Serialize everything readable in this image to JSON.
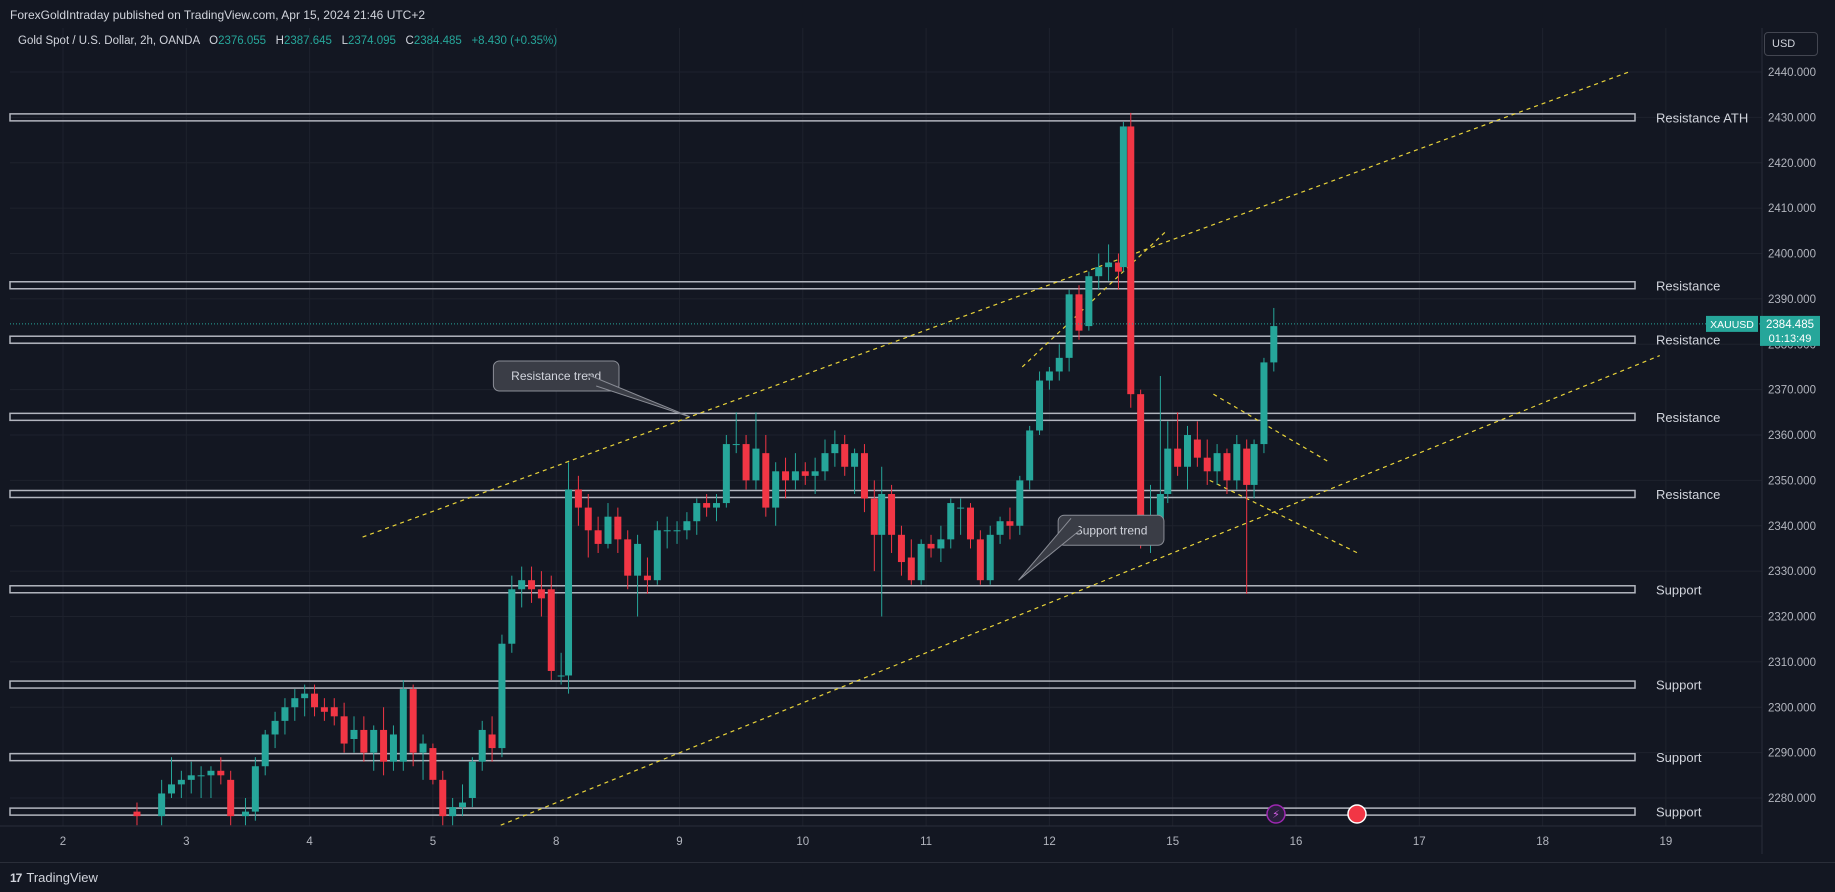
{
  "header": {
    "published_line": "ForexGoldIntraday published on TradingView.com, Apr 15, 2024 21:46 UTC+2"
  },
  "legend": {
    "symbol": "Gold Spot / U.S. Dollar, 2h, OANDA",
    "open_label": "O",
    "open": "2376.055",
    "high_label": "H",
    "high": "2387.645",
    "low_label": "L",
    "low": "2374.095",
    "close_label": "C",
    "close": "2384.485",
    "change": "+8.430 (+0.35%)"
  },
  "currency": "USD",
  "price_badge": {
    "symbol": "XAUUSD",
    "price": "2384.485",
    "countdown": "01:13:49"
  },
  "footer": {
    "brand": "TradingView"
  },
  "colors": {
    "background": "#131722",
    "up": "#26a69a",
    "down": "#f23645",
    "trend": "#e8d33a",
    "level": "#b2b5be"
  },
  "chart_data": {
    "type": "candlestick",
    "symbol": "XAUUSD",
    "timeframe": "2h",
    "y_range": [
      2275,
      2445
    ],
    "y_ticks": [
      "2280.000",
      "2290.000",
      "2300.000",
      "2310.000",
      "2320.000",
      "2330.000",
      "2340.000",
      "2350.000",
      "2360.000",
      "2370.000",
      "2380.000",
      "2390.000",
      "2400.000",
      "2410.000",
      "2420.000",
      "2430.000",
      "2440.000"
    ],
    "x_range": [
      1.5,
      19.5
    ],
    "x_ticks": [
      {
        "label": "2",
        "x": 2
      },
      {
        "label": "3",
        "x": 3
      },
      {
        "label": "4",
        "x": 4
      },
      {
        "label": "5",
        "x": 5
      },
      {
        "label": "8",
        "x": 6
      },
      {
        "label": "9",
        "x": 7
      },
      {
        "label": "10",
        "x": 8
      },
      {
        "label": "11",
        "x": 9
      },
      {
        "label": "12",
        "x": 10
      },
      {
        "label": "15",
        "x": 11
      },
      {
        "label": "16",
        "x": 12
      },
      {
        "label": "17",
        "x": 13
      },
      {
        "label": "18",
        "x": 14
      },
      {
        "label": "19",
        "x": 15
      }
    ],
    "levels": [
      {
        "label": "Resistance ATH",
        "price": 2430
      },
      {
        "label": "Resistance",
        "price": 2393
      },
      {
        "label": "Resistance",
        "price": 2381
      },
      {
        "label": "Resistance",
        "price": 2364
      },
      {
        "label": "Resistance",
        "price": 2347
      },
      {
        "label": "Support",
        "price": 2326
      },
      {
        "label": "Support",
        "price": 2305
      },
      {
        "label": "Support",
        "price": 2289
      },
      {
        "label": "Support",
        "price": 2277
      }
    ],
    "trend_lines": [
      {
        "from": [
          4.43,
          2337.5
        ],
        "to": [
          14.7,
          2440
        ]
      },
      {
        "from": [
          5.55,
          2274
        ],
        "to": [
          14.95,
          2377.5
        ]
      },
      {
        "from": [
          11.33,
          2369
        ],
        "to": [
          12.27,
          2354
        ]
      },
      {
        "from": [
          11.3,
          2350
        ],
        "to": [
          12.5,
          2334
        ]
      },
      {
        "from": [
          9.78,
          2375
        ],
        "to": [
          10.95,
          2405
        ]
      }
    ],
    "annotations": [
      {
        "text": "Resistance trend",
        "x": 6.0,
        "y": 2373
      },
      {
        "text": "Support trend",
        "x": 10.5,
        "y": 2339
      }
    ],
    "candles": [
      {
        "x": 2.6,
        "o": 2277,
        "h": 2279,
        "l": 2274,
        "c": 2276
      },
      {
        "x": 2.8,
        "o": 2276,
        "h": 2284,
        "l": 2274,
        "c": 2281
      },
      {
        "x": 2.88,
        "o": 2281,
        "h": 2289,
        "l": 2280,
        "c": 2283
      },
      {
        "x": 2.96,
        "o": 2283,
        "h": 2286,
        "l": 2280,
        "c": 2284
      },
      {
        "x": 3.04,
        "o": 2284,
        "h": 2288,
        "l": 2281,
        "c": 2285
      },
      {
        "x": 3.12,
        "o": 2285,
        "h": 2287,
        "l": 2280,
        "c": 2285
      },
      {
        "x": 3.2,
        "o": 2285,
        "h": 2287,
        "l": 2280,
        "c": 2286
      },
      {
        "x": 3.28,
        "o": 2286,
        "h": 2289,
        "l": 2283,
        "c": 2285
      },
      {
        "x": 3.36,
        "o": 2284,
        "h": 2286,
        "l": 2274,
        "c": 2276
      },
      {
        "x": 3.48,
        "o": 2276,
        "h": 2280,
        "l": 2274,
        "c": 2277
      },
      {
        "x": 3.56,
        "o": 2277,
        "h": 2289,
        "l": 2275,
        "c": 2287
      },
      {
        "x": 3.64,
        "o": 2287,
        "h": 2295,
        "l": 2285,
        "c": 2294
      },
      {
        "x": 3.72,
        "o": 2294,
        "h": 2299,
        "l": 2291,
        "c": 2297
      },
      {
        "x": 3.8,
        "o": 2297,
        "h": 2302,
        "l": 2294,
        "c": 2300
      },
      {
        "x": 3.88,
        "o": 2300,
        "h": 2304,
        "l": 2297,
        "c": 2302
      },
      {
        "x": 3.96,
        "o": 2302,
        "h": 2305,
        "l": 2298,
        "c": 2303
      },
      {
        "x": 4.04,
        "o": 2303,
        "h": 2305,
        "l": 2298,
        "c": 2300
      },
      {
        "x": 4.12,
        "o": 2300,
        "h": 2302,
        "l": 2297,
        "c": 2299
      },
      {
        "x": 4.2,
        "o": 2300,
        "h": 2302,
        "l": 2296,
        "c": 2298
      },
      {
        "x": 4.28,
        "o": 2298,
        "h": 2301,
        "l": 2290,
        "c": 2292
      },
      {
        "x": 4.36,
        "o": 2293,
        "h": 2298,
        "l": 2290,
        "c": 2295
      },
      {
        "x": 4.44,
        "o": 2295,
        "h": 2298,
        "l": 2288,
        "c": 2290
      },
      {
        "x": 4.52,
        "o": 2290,
        "h": 2296,
        "l": 2286,
        "c": 2295
      },
      {
        "x": 4.6,
        "o": 2295,
        "h": 2300,
        "l": 2285,
        "c": 2288
      },
      {
        "x": 4.68,
        "o": 2288,
        "h": 2296,
        "l": 2286,
        "c": 2294
      },
      {
        "x": 4.76,
        "o": 2288,
        "h": 2306,
        "l": 2286,
        "c": 2304
      },
      {
        "x": 4.84,
        "o": 2304,
        "h": 2305,
        "l": 2287,
        "c": 2290
      },
      {
        "x": 4.92,
        "o": 2290,
        "h": 2294,
        "l": 2284,
        "c": 2292
      },
      {
        "x": 5.0,
        "o": 2291,
        "h": 2292,
        "l": 2283,
        "c": 2284
      },
      {
        "x": 5.08,
        "o": 2284,
        "h": 2286,
        "l": 2274,
        "c": 2276
      },
      {
        "x": 5.16,
        "o": 2276,
        "h": 2280,
        "l": 2274,
        "c": 2278
      },
      {
        "x": 5.24,
        "o": 2278,
        "h": 2283,
        "l": 2276,
        "c": 2279
      },
      {
        "x": 5.32,
        "o": 2280,
        "h": 2289,
        "l": 2278,
        "c": 2288
      },
      {
        "x": 5.4,
        "o": 2288,
        "h": 2297,
        "l": 2286,
        "c": 2295
      },
      {
        "x": 5.48,
        "o": 2294,
        "h": 2298,
        "l": 2288,
        "c": 2291
      },
      {
        "x": 5.56,
        "o": 2291,
        "h": 2316,
        "l": 2289,
        "c": 2314
      },
      {
        "x": 5.64,
        "o": 2314,
        "h": 2329,
        "l": 2312,
        "c": 2326
      },
      {
        "x": 5.72,
        "o": 2326,
        "h": 2331,
        "l": 2322,
        "c": 2328
      },
      {
        "x": 5.8,
        "o": 2328,
        "h": 2331,
        "l": 2323,
        "c": 2326
      },
      {
        "x": 5.88,
        "o": 2326,
        "h": 2330,
        "l": 2320,
        "c": 2324
      },
      {
        "x": 5.96,
        "o": 2326,
        "h": 2329,
        "l": 2306,
        "c": 2308
      },
      {
        "x": 6.04,
        "o": 2307,
        "h": 2312,
        "l": 2305,
        "c": 2307
      },
      {
        "x": 6.1,
        "o": 2307,
        "h": 2354,
        "l": 2303,
        "c": 2348
      },
      {
        "x": 6.18,
        "o": 2348,
        "h": 2351,
        "l": 2340,
        "c": 2344
      },
      {
        "x": 6.26,
        "o": 2344,
        "h": 2347,
        "l": 2333,
        "c": 2339
      },
      {
        "x": 6.34,
        "o": 2339,
        "h": 2342,
        "l": 2334,
        "c": 2336
      },
      {
        "x": 6.42,
        "o": 2336,
        "h": 2345,
        "l": 2335,
        "c": 2342
      },
      {
        "x": 6.5,
        "o": 2342,
        "h": 2344,
        "l": 2334,
        "c": 2337
      },
      {
        "x": 6.58,
        "o": 2337,
        "h": 2339,
        "l": 2326,
        "c": 2329
      },
      {
        "x": 6.66,
        "o": 2329,
        "h": 2338,
        "l": 2320,
        "c": 2336
      },
      {
        "x": 6.74,
        "o": 2329,
        "h": 2333,
        "l": 2325,
        "c": 2328
      },
      {
        "x": 6.82,
        "o": 2328,
        "h": 2341,
        "l": 2327,
        "c": 2339
      },
      {
        "x": 6.9,
        "o": 2339,
        "h": 2342,
        "l": 2335,
        "c": 2339
      },
      {
        "x": 6.98,
        "o": 2339,
        "h": 2341,
        "l": 2336,
        "c": 2339
      },
      {
        "x": 7.06,
        "o": 2339,
        "h": 2343,
        "l": 2337,
        "c": 2341
      },
      {
        "x": 7.14,
        "o": 2341,
        "h": 2346,
        "l": 2338,
        "c": 2345
      },
      {
        "x": 7.22,
        "o": 2345,
        "h": 2347,
        "l": 2342,
        "c": 2344
      },
      {
        "x": 7.3,
        "o": 2344,
        "h": 2347,
        "l": 2341,
        "c": 2345
      },
      {
        "x": 7.38,
        "o": 2345,
        "h": 2360,
        "l": 2344,
        "c": 2358
      },
      {
        "x": 7.46,
        "o": 2358,
        "h": 2365,
        "l": 2356,
        "c": 2358
      },
      {
        "x": 7.54,
        "o": 2358,
        "h": 2360,
        "l": 2348,
        "c": 2350
      },
      {
        "x": 7.62,
        "o": 2350,
        "h": 2365,
        "l": 2348,
        "c": 2357
      },
      {
        "x": 7.7,
        "o": 2356,
        "h": 2360,
        "l": 2342,
        "c": 2344
      },
      {
        "x": 7.78,
        "o": 2344,
        "h": 2354,
        "l": 2340,
        "c": 2352
      },
      {
        "x": 7.86,
        "o": 2352,
        "h": 2355,
        "l": 2346,
        "c": 2350
      },
      {
        "x": 7.94,
        "o": 2350,
        "h": 2356,
        "l": 2348,
        "c": 2352
      },
      {
        "x": 8.02,
        "o": 2352,
        "h": 2354,
        "l": 2349,
        "c": 2351
      },
      {
        "x": 8.1,
        "o": 2351,
        "h": 2355,
        "l": 2347,
        "c": 2352
      },
      {
        "x": 8.18,
        "o": 2352,
        "h": 2359,
        "l": 2350,
        "c": 2356
      },
      {
        "x": 8.26,
        "o": 2356,
        "h": 2361,
        "l": 2353,
        "c": 2358
      },
      {
        "x": 8.34,
        "o": 2358,
        "h": 2360,
        "l": 2351,
        "c": 2353
      },
      {
        "x": 8.42,
        "o": 2353,
        "h": 2357,
        "l": 2347,
        "c": 2356
      },
      {
        "x": 8.5,
        "o": 2356,
        "h": 2358,
        "l": 2343,
        "c": 2346
      },
      {
        "x": 8.58,
        "o": 2346,
        "h": 2350,
        "l": 2330,
        "c": 2338
      },
      {
        "x": 8.64,
        "o": 2338,
        "h": 2353,
        "l": 2320,
        "c": 2347
      },
      {
        "x": 8.72,
        "o": 2347,
        "h": 2349,
        "l": 2334,
        "c": 2338
      },
      {
        "x": 8.8,
        "o": 2338,
        "h": 2340,
        "l": 2329,
        "c": 2332
      },
      {
        "x": 8.88,
        "o": 2333,
        "h": 2337,
        "l": 2327,
        "c": 2328
      },
      {
        "x": 8.96,
        "o": 2328,
        "h": 2337,
        "l": 2327,
        "c": 2336
      },
      {
        "x": 9.04,
        "o": 2336,
        "h": 2338,
        "l": 2333,
        "c": 2335
      },
      {
        "x": 9.12,
        "o": 2335,
        "h": 2340,
        "l": 2332,
        "c": 2337
      },
      {
        "x": 9.2,
        "o": 2337,
        "h": 2346,
        "l": 2335,
        "c": 2345
      },
      {
        "x": 9.28,
        "o": 2344,
        "h": 2346,
        "l": 2338,
        "c": 2344
      },
      {
        "x": 9.36,
        "o": 2344,
        "h": 2345,
        "l": 2335,
        "c": 2337
      },
      {
        "x": 9.44,
        "o": 2337,
        "h": 2339,
        "l": 2327,
        "c": 2328
      },
      {
        "x": 9.52,
        "o": 2328,
        "h": 2340,
        "l": 2327,
        "c": 2338
      },
      {
        "x": 9.6,
        "o": 2338,
        "h": 2342,
        "l": 2336,
        "c": 2341
      },
      {
        "x": 9.68,
        "o": 2341,
        "h": 2344,
        "l": 2337,
        "c": 2340
      },
      {
        "x": 9.76,
        "o": 2340,
        "h": 2351,
        "l": 2338,
        "c": 2350
      },
      {
        "x": 9.84,
        "o": 2350,
        "h": 2362,
        "l": 2348,
        "c": 2361
      },
      {
        "x": 9.92,
        "o": 2361,
        "h": 2374,
        "l": 2360,
        "c": 2372
      },
      {
        "x": 10.0,
        "o": 2372,
        "h": 2375,
        "l": 2370,
        "c": 2374
      },
      {
        "x": 10.08,
        "o": 2374,
        "h": 2380,
        "l": 2372,
        "c": 2377
      },
      {
        "x": 10.16,
        "o": 2377,
        "h": 2392,
        "l": 2374,
        "c": 2391
      },
      {
        "x": 10.24,
        "o": 2391,
        "h": 2393,
        "l": 2381,
        "c": 2383
      },
      {
        "x": 10.32,
        "o": 2384,
        "h": 2396,
        "l": 2383,
        "c": 2395
      },
      {
        "x": 10.4,
        "o": 2395,
        "h": 2400,
        "l": 2392,
        "c": 2397
      },
      {
        "x": 10.48,
        "o": 2397,
        "h": 2402,
        "l": 2394,
        "c": 2398
      },
      {
        "x": 10.56,
        "o": 2398,
        "h": 2400,
        "l": 2392,
        "c": 2396
      },
      {
        "x": 10.6,
        "o": 2397,
        "h": 2429,
        "l": 2396,
        "c": 2428
      },
      {
        "x": 10.66,
        "o": 2428,
        "h": 2431,
        "l": 2366,
        "c": 2369
      },
      {
        "x": 10.74,
        "o": 2369,
        "h": 2370,
        "l": 2335,
        "c": 2338
      },
      {
        "x": 10.82,
        "o": 2338,
        "h": 2349,
        "l": 2334,
        "c": 2340
      },
      {
        "x": 10.9,
        "o": 2340,
        "h": 2373,
        "l": 2338,
        "c": 2347
      },
      {
        "x": 10.96,
        "o": 2347,
        "h": 2363,
        "l": 2345,
        "c": 2357
      },
      {
        "x": 11.04,
        "o": 2357,
        "h": 2365,
        "l": 2351,
        "c": 2353
      },
      {
        "x": 11.12,
        "o": 2353,
        "h": 2362,
        "l": 2348,
        "c": 2360
      },
      {
        "x": 11.2,
        "o": 2359,
        "h": 2363,
        "l": 2353,
        "c": 2355
      },
      {
        "x": 11.28,
        "o": 2355,
        "h": 2359,
        "l": 2349,
        "c": 2352
      },
      {
        "x": 11.36,
        "o": 2352,
        "h": 2358,
        "l": 2349,
        "c": 2356
      },
      {
        "x": 11.44,
        "o": 2356,
        "h": 2357,
        "l": 2347,
        "c": 2350
      },
      {
        "x": 11.52,
        "o": 2350,
        "h": 2360,
        "l": 2348,
        "c": 2358
      },
      {
        "x": 11.6,
        "o": 2357,
        "h": 2359,
        "l": 2325,
        "c": 2349
      },
      {
        "x": 11.66,
        "o": 2349,
        "h": 2359,
        "l": 2346,
        "c": 2358
      },
      {
        "x": 11.74,
        "o": 2358,
        "h": 2377,
        "l": 2356,
        "c": 2376
      },
      {
        "x": 11.82,
        "o": 2376,
        "h": 2388,
        "l": 2374,
        "c": 2384
      }
    ]
  }
}
